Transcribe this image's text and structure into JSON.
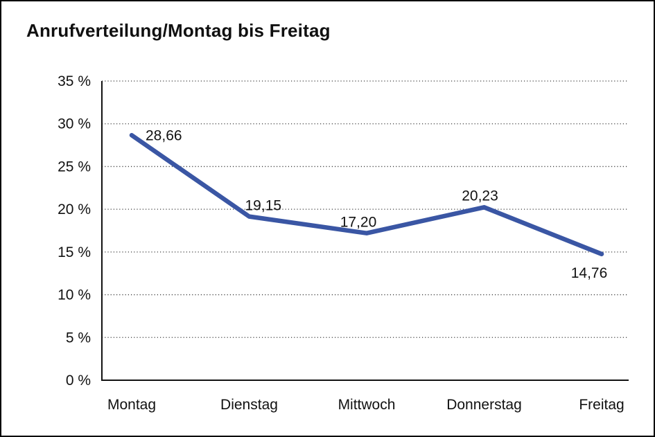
{
  "chart_data": {
    "type": "line",
    "title": "Anrufverteilung/Montag bis Freitag",
    "categories": [
      "Montag",
      "Dienstag",
      "Mittwoch",
      "Donnerstag",
      "Freitag"
    ],
    "values": [
      28.66,
      19.15,
      17.2,
      20.23,
      14.76
    ],
    "value_labels": [
      "28,66",
      "19,15",
      "17,20",
      "20,23",
      "14,76"
    ],
    "xlabel": "",
    "ylabel": "",
    "ylim": [
      0,
      35
    ],
    "ytick_step": 5,
    "ytick_labels": [
      "0 %",
      "5 %",
      "10 %",
      "15 %",
      "20 %",
      "25 %",
      "30 %",
      "35 %"
    ],
    "grid": "horizontal-dotted",
    "legend_position": "none",
    "colors": {
      "line": "#3A56A4",
      "text": "#111111",
      "axis": "#111111",
      "grid": "#3c3c3c",
      "background": "#ffffff",
      "frame_border": "#000000"
    }
  }
}
